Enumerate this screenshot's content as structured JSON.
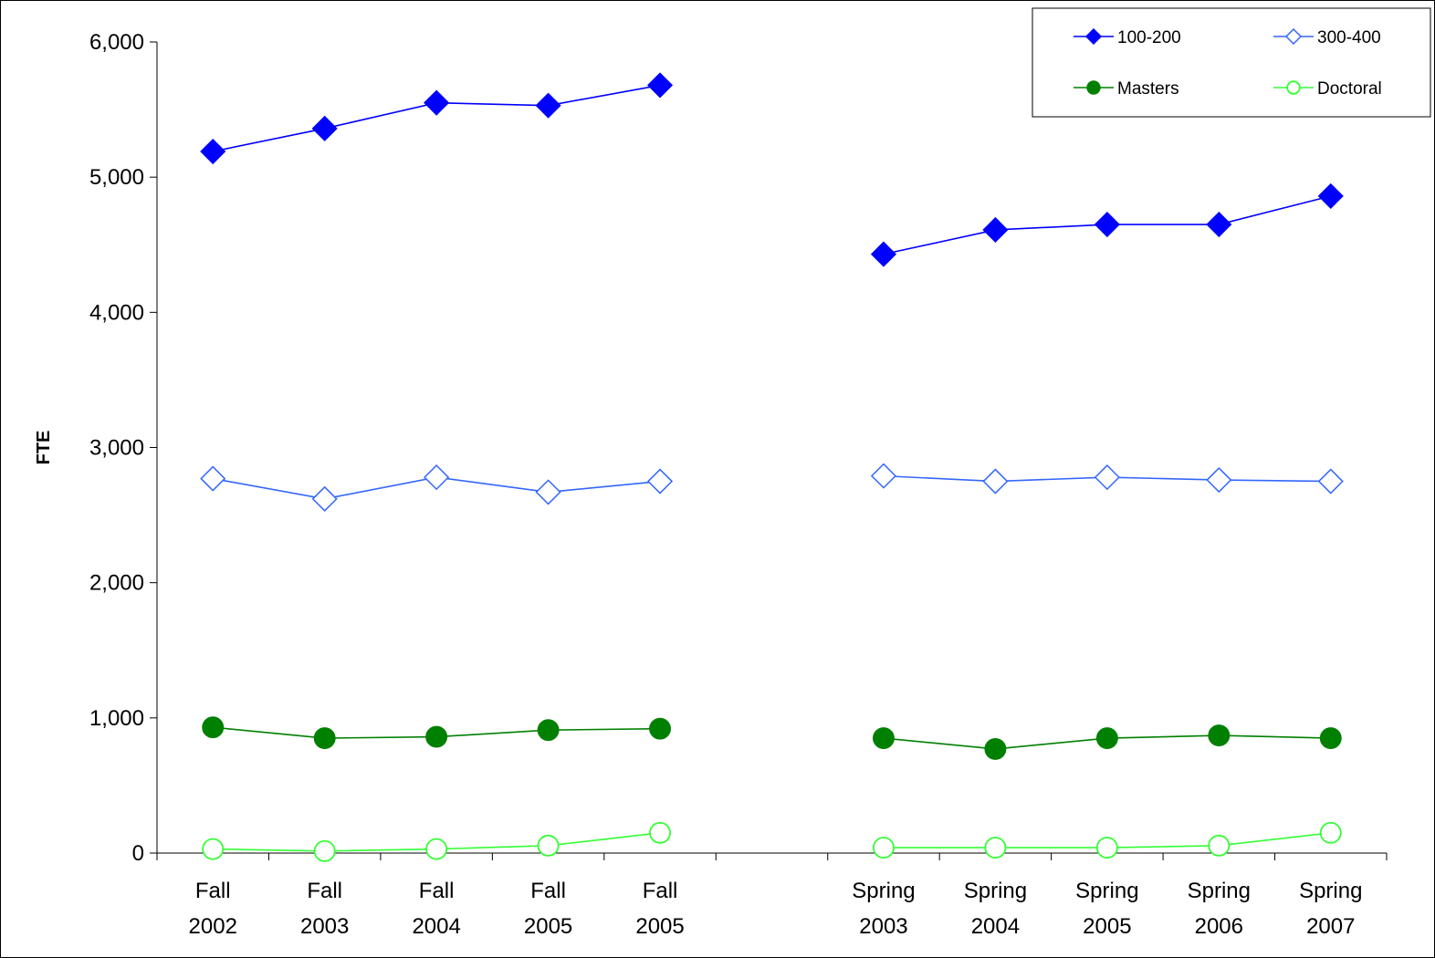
{
  "chart_data": {
    "type": "line",
    "title": "",
    "xlabel": "",
    "ylabel": "FTE",
    "ylim": [
      0,
      6000
    ],
    "yticks": [
      0,
      1000,
      2000,
      3000,
      4000,
      5000,
      6000
    ],
    "ytick_labels": [
      "0",
      "1,000",
      "2,000",
      "3,000",
      "4,000",
      "5,000",
      "6,000"
    ],
    "categories": [
      [
        "Fall",
        "2002"
      ],
      [
        "Fall",
        "2003"
      ],
      [
        "Fall",
        "2004"
      ],
      [
        "Fall",
        "2005"
      ],
      [
        "Fall",
        "2005"
      ],
      [
        "",
        ""
      ],
      [
        "Spring",
        "2003"
      ],
      [
        "Spring",
        "2004"
      ],
      [
        "Spring",
        "2005"
      ],
      [
        "Spring",
        "2006"
      ],
      [
        "Spring",
        "2007"
      ]
    ],
    "grid": false,
    "legend_position": "top-right",
    "series": [
      {
        "name": "100-200",
        "color": "#0000ff",
        "marker": "diamond-filled",
        "values": [
          5190,
          5360,
          5550,
          5530,
          5680,
          null,
          4430,
          4610,
          4650,
          4650,
          4860
        ]
      },
      {
        "name": "300-400",
        "color": "#3366ff",
        "marker": "diamond-open",
        "values": [
          2770,
          2620,
          2780,
          2670,
          2750,
          null,
          2790,
          2750,
          2780,
          2760,
          2750
        ]
      },
      {
        "name": "Masters",
        "color": "#008000",
        "marker": "circle-filled",
        "values": [
          930,
          850,
          860,
          910,
          920,
          null,
          850,
          770,
          850,
          870,
          850
        ]
      },
      {
        "name": "Doctoral",
        "color": "#33ff33",
        "marker": "circle-open",
        "values": [
          30,
          15,
          30,
          55,
          150,
          null,
          40,
          40,
          40,
          55,
          150
        ]
      }
    ]
  }
}
